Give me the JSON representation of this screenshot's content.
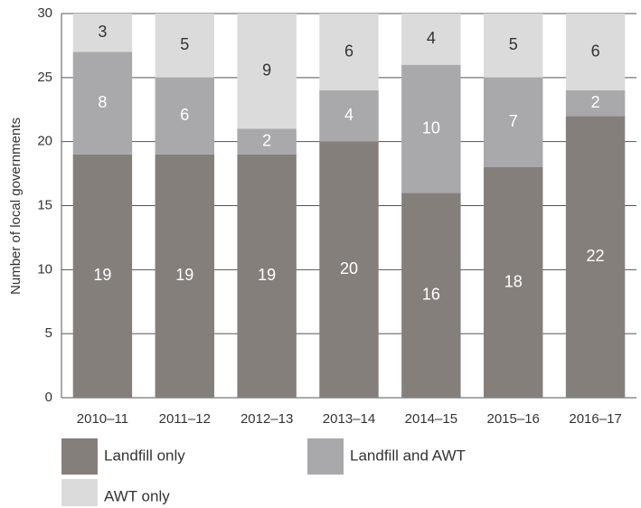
{
  "chart_data": {
    "type": "bar",
    "stacked": true,
    "y_label": "Number of local governments",
    "categories": [
      "2010–11",
      "2011–12",
      "2012–13",
      "2013–14",
      "2014–15",
      "2015–16",
      "2016–17"
    ],
    "series": [
      {
        "name": "Landfill only",
        "color": "#857f7c",
        "values": [
          19,
          19,
          19,
          20,
          16,
          18,
          22
        ]
      },
      {
        "name": "Landfill and AWT",
        "color": "#a9a8aa",
        "values": [
          8,
          6,
          2,
          4,
          10,
          7,
          2
        ]
      },
      {
        "name": "AWT only",
        "color": "#dcdbdb",
        "values": [
          3,
          5,
          9,
          6,
          4,
          5,
          6
        ]
      }
    ],
    "ylim": [
      0,
      30
    ],
    "yticks": [
      0,
      5,
      10,
      15,
      20,
      25,
      30
    ],
    "grid": true
  }
}
